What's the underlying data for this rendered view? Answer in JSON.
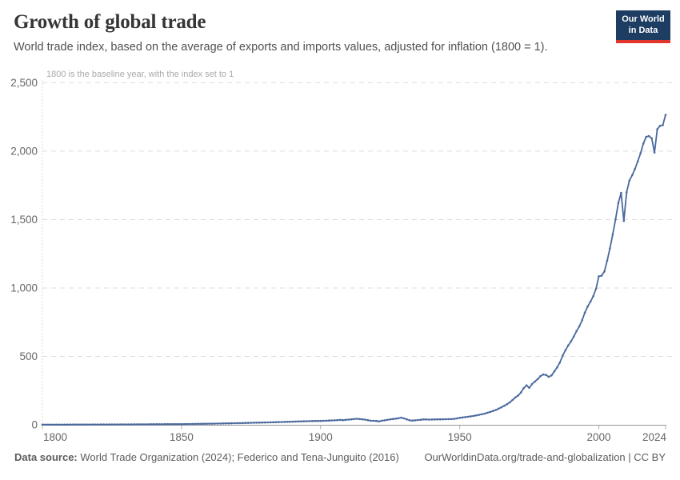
{
  "header": {
    "title": "Growth of global trade",
    "subtitle": "World trade index, based on the average of exports and imports values, adjusted for inflation (1800 = 1).",
    "logo": {
      "line1": "Our World",
      "line2": "in Data",
      "bg_color": "#1d3d63",
      "accent_color": "#e2352b"
    }
  },
  "annotation": "1800 is the baseline year, with the index set to 1",
  "footer": {
    "source_label": "Data source:",
    "source_text": " World Trade Organization (2024); Federico and Tena-Junguito (2016)",
    "credit": "OurWorldinData.org/trade-and-globalization | CC BY"
  },
  "chart_data": {
    "type": "line",
    "title": "Growth of global trade",
    "series": [
      {
        "name": "World trade index",
        "x_start_year": 1800,
        "x_step": 1,
        "values": [
          1.0,
          1.0,
          1.1,
          1.1,
          1.2,
          1.2,
          1.3,
          1.3,
          1.4,
          1.4,
          1.5,
          1.5,
          1.6,
          1.6,
          1.7,
          1.7,
          1.8,
          1.8,
          1.9,
          1.9,
          2.0,
          2.1,
          2.2,
          2.3,
          2.4,
          2.5,
          2.6,
          2.7,
          2.8,
          2.9,
          3.0,
          3.1,
          3.2,
          3.3,
          3.4,
          3.5,
          3.6,
          3.7,
          3.8,
          3.9,
          4.0,
          4.1,
          4.2,
          4.3,
          4.4,
          4.5,
          4.6,
          4.7,
          4.8,
          4.9,
          5.0,
          5.3,
          5.6,
          5.9,
          6.2,
          6.5,
          6.8,
          7.1,
          7.4,
          7.7,
          8.0,
          8.4,
          8.8,
          9.2,
          9.6,
          10.0,
          10.4,
          10.8,
          11.2,
          11.6,
          12,
          12.5,
          13,
          13.5,
          14,
          14.5,
          15,
          15.5,
          16,
          16.5,
          17,
          17.6,
          18.2,
          18.8,
          19.4,
          20,
          20.6,
          21.2,
          21.8,
          22.4,
          23,
          23.7,
          24.4,
          25.1,
          25.8,
          26.5,
          27,
          27.5,
          27.8,
          27.9,
          28,
          29,
          30,
          31,
          32,
          33,
          34,
          35.5,
          34,
          36,
          38,
          40,
          42,
          44,
          42,
          40,
          38,
          34,
          30,
          29,
          28,
          25,
          30,
          33,
          36,
          40,
          42,
          45,
          48,
          52,
          47,
          40,
          33,
          31,
          33,
          35,
          37,
          40,
          39,
          38,
          38.5,
          39,
          39.5,
          40,
          40.5,
          41,
          41.5,
          42,
          43,
          47,
          51,
          54,
          56,
          59,
          62,
          65,
          69,
          73,
          77,
          82,
          88,
          94,
          101,
          109,
          118,
          128,
          139,
          150,
          164,
          182,
          200,
          214,
          236,
          268,
          288,
          270,
          298,
          315,
          333,
          355,
          368,
          364,
          351,
          361,
          390,
          420,
          455,
          505,
          545,
          580,
          610,
          645,
          685,
          720,
          765,
          820,
          865,
          900,
          940,
          995,
          1085,
          1090,
          1120,
          1200,
          1290,
          1390,
          1500,
          1620,
          1695,
          1490,
          1700,
          1785,
          1825,
          1870,
          1925,
          1985,
          2055,
          2105,
          2110,
          2095,
          1990,
          2160,
          2185,
          2190,
          2265
        ]
      }
    ],
    "xlim": [
      1800,
      2024
    ],
    "ylim": [
      0,
      2500
    ],
    "xticks": [
      1800,
      1850,
      1900,
      1950,
      2000,
      2024
    ],
    "yticks": [
      0,
      500,
      1000,
      1500,
      2000,
      2500
    ],
    "ytick_labels": [
      "0",
      "500",
      "1,000",
      "1,500",
      "2,000",
      "2,500"
    ],
    "grid": "horizontal-dashed",
    "legend": "none",
    "line_color": "#4a699c",
    "axis_color": "#999999",
    "grid_color": "#dedede",
    "tick_label_color": "#666666"
  }
}
